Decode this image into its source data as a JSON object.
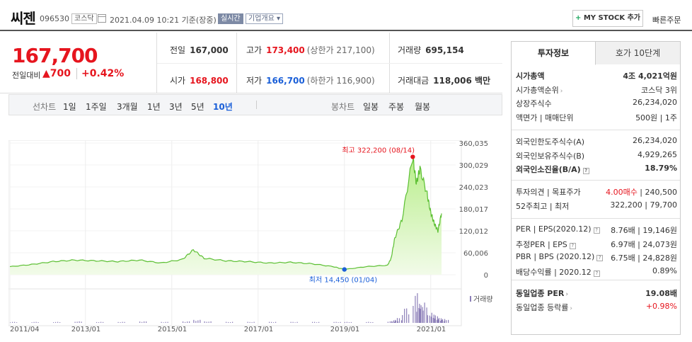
{
  "header": {
    "name": "씨젠",
    "code": "096530",
    "market": "코스닥",
    "datetime": "2021.04.09 10:21  기준(장중)",
    "realtime": "실시간",
    "overview": "기업개요",
    "mystock": "MY STOCK 추가",
    "quick_order": "빠른주문"
  },
  "price": {
    "current": "167,700",
    "change_label": "전일대비",
    "change": "700",
    "change_pct": "+0.42%"
  },
  "quote": {
    "prev_label": "전일",
    "prev": "167,000",
    "high_label": "고가",
    "high": "173,400",
    "upper_limit": "(상한가 217,100)",
    "volume_label": "거래량",
    "volume": "695,154",
    "open_label": "시가",
    "open": "168,800",
    "low_label": "저가",
    "low": "166,700",
    "lower_limit": "(하한가 116,900)",
    "amount_label": "거래대금",
    "amount": "118,006 백만"
  },
  "tabs": {
    "line_label": "선차트",
    "line_tabs": [
      "1일",
      "1주일",
      "3개월",
      "1년",
      "3년",
      "5년",
      "10년"
    ],
    "selected": "10년",
    "candle_label": "봉차트",
    "candle_tabs": [
      "일봉",
      "주봉",
      "월봉"
    ]
  },
  "chart_data": {
    "type": "area",
    "title": "",
    "y_ticks": [
      "360,035",
      "300,029",
      "240,023",
      "180,017",
      "120,012",
      "60,006",
      "0"
    ],
    "ylim": [
      0,
      360035
    ],
    "x_ticks": [
      "2011/04",
      "2013/01",
      "2015/01",
      "2017/01",
      "2019/01",
      "2021/01"
    ],
    "volume_label": "거래량",
    "max_annotation": "최고 322,200 (08/14)",
    "min_annotation": "최저 14,450 (01/04)",
    "series": [
      {
        "x": [
          "2011/04",
          "2011/10",
          "2012/04",
          "2012/10",
          "2013/04",
          "2013/10",
          "2014/04",
          "2014/10",
          "2015/04",
          "2015/07",
          "2015/10",
          "2016/04",
          "2016/10",
          "2017/04",
          "2017/10",
          "2018/04",
          "2018/10",
          "2019/01",
          "2019/07",
          "2020/01",
          "2020/02",
          "2020/03",
          "2020/05",
          "2020/08",
          "2020/09",
          "2020/10",
          "2020/12",
          "2021/01",
          "2021/02",
          "2021/03",
          "2021/04"
        ],
        "values": [
          22000,
          28000,
          36000,
          40000,
          38000,
          36000,
          40000,
          32000,
          42000,
          68000,
          45000,
          38000,
          36000,
          32000,
          34000,
          30000,
          22000,
          14450,
          22000,
          26000,
          45000,
          100000,
          150000,
          322200,
          250000,
          290000,
          220000,
          170000,
          140000,
          120000,
          167700
        ]
      }
    ],
    "volume": [
      2,
      2,
      2,
      3,
      2,
      2,
      3,
      2,
      3,
      6,
      3,
      2,
      2,
      2,
      2,
      2,
      2,
      2,
      2,
      3,
      5,
      10,
      30,
      60,
      35,
      40,
      20,
      15,
      10,
      8,
      6
    ]
  },
  "panel": {
    "tab_invest": "투자정보",
    "tab_hoga": "호가 10단계",
    "rows1": [
      {
        "l": "시가총액",
        "r": "4조 4,021억원",
        "bold": true
      },
      {
        "l": "시가총액순위",
        "r": "코스닥 3위",
        "arrow": true
      },
      {
        "l": "상장주식수",
        "r": "26,234,020"
      },
      {
        "l": "액면가 | 매매단위",
        "r": "500원 | 1주"
      }
    ],
    "rows2": [
      {
        "l": "외국인한도주식수(A)",
        "r": "26,234,020"
      },
      {
        "l": "외국인보유주식수(B)",
        "r": "4,929,265"
      },
      {
        "l": "외국인소진율(B/A)",
        "r": "18.79%",
        "bold": true,
        "q": true
      }
    ],
    "rows3": [
      {
        "l": "투자의견 | 목표주가",
        "r_red": "4.00매수",
        "r": " | 240,500"
      },
      {
        "l": "52주최고 | 최저",
        "r": "322,200 | 79,700"
      }
    ],
    "rows4": [
      {
        "l": "PER | EPS(2020.12)",
        "r": "8.76배 | 19,146원",
        "q": true
      },
      {
        "l": "추정PER | EPS",
        "r": "6.97배 | 24,073원",
        "q": true
      },
      {
        "l": "PBR | BPS (2020.12)",
        "r": "6.75배 | 24,828원",
        "q": true
      },
      {
        "l": "배당수익률 | 2020.12",
        "r": "0.89%",
        "q": true
      }
    ],
    "rows5": [
      {
        "l": "동일업종 PER",
        "r": "19.08배",
        "bold": true,
        "arrow": true
      },
      {
        "l": "동일업종 등락률",
        "r": "+0.98%",
        "red": true,
        "arrow": true
      }
    ]
  }
}
